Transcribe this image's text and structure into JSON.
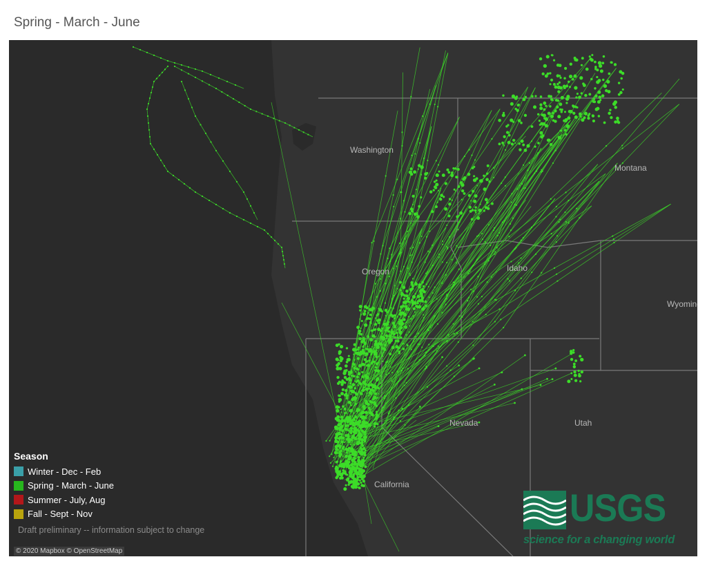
{
  "title": "Spring - March - June",
  "map": {
    "state_labels": [
      {
        "name": "Washington"
      },
      {
        "name": "Montana"
      },
      {
        "name": "Oregon"
      },
      {
        "name": "Idaho"
      },
      {
        "name": "Wyoming"
      },
      {
        "name": "Nevada"
      },
      {
        "name": "Utah"
      },
      {
        "name": "California"
      }
    ],
    "track_color": "#3cdc28",
    "background_color": "#2a2a2a"
  },
  "legend": {
    "title": "Season",
    "items": [
      {
        "label": "Winter - Dec - Feb",
        "color": "#3a9fa8"
      },
      {
        "label": "Spring - March - June",
        "color": "#27b61d"
      },
      {
        "label": "Summer - July, Aug",
        "color": "#b3171a"
      },
      {
        "label": "Fall - Sept - Nov",
        "color": "#b9a40d"
      }
    ]
  },
  "disclaimer": "Draft preliminary -- information subject to change",
  "attribution": "© 2020 Mapbox © OpenStreetMap",
  "logo": {
    "name": "USGS",
    "tagline": "science for a changing world",
    "color": "#1b7a55"
  }
}
